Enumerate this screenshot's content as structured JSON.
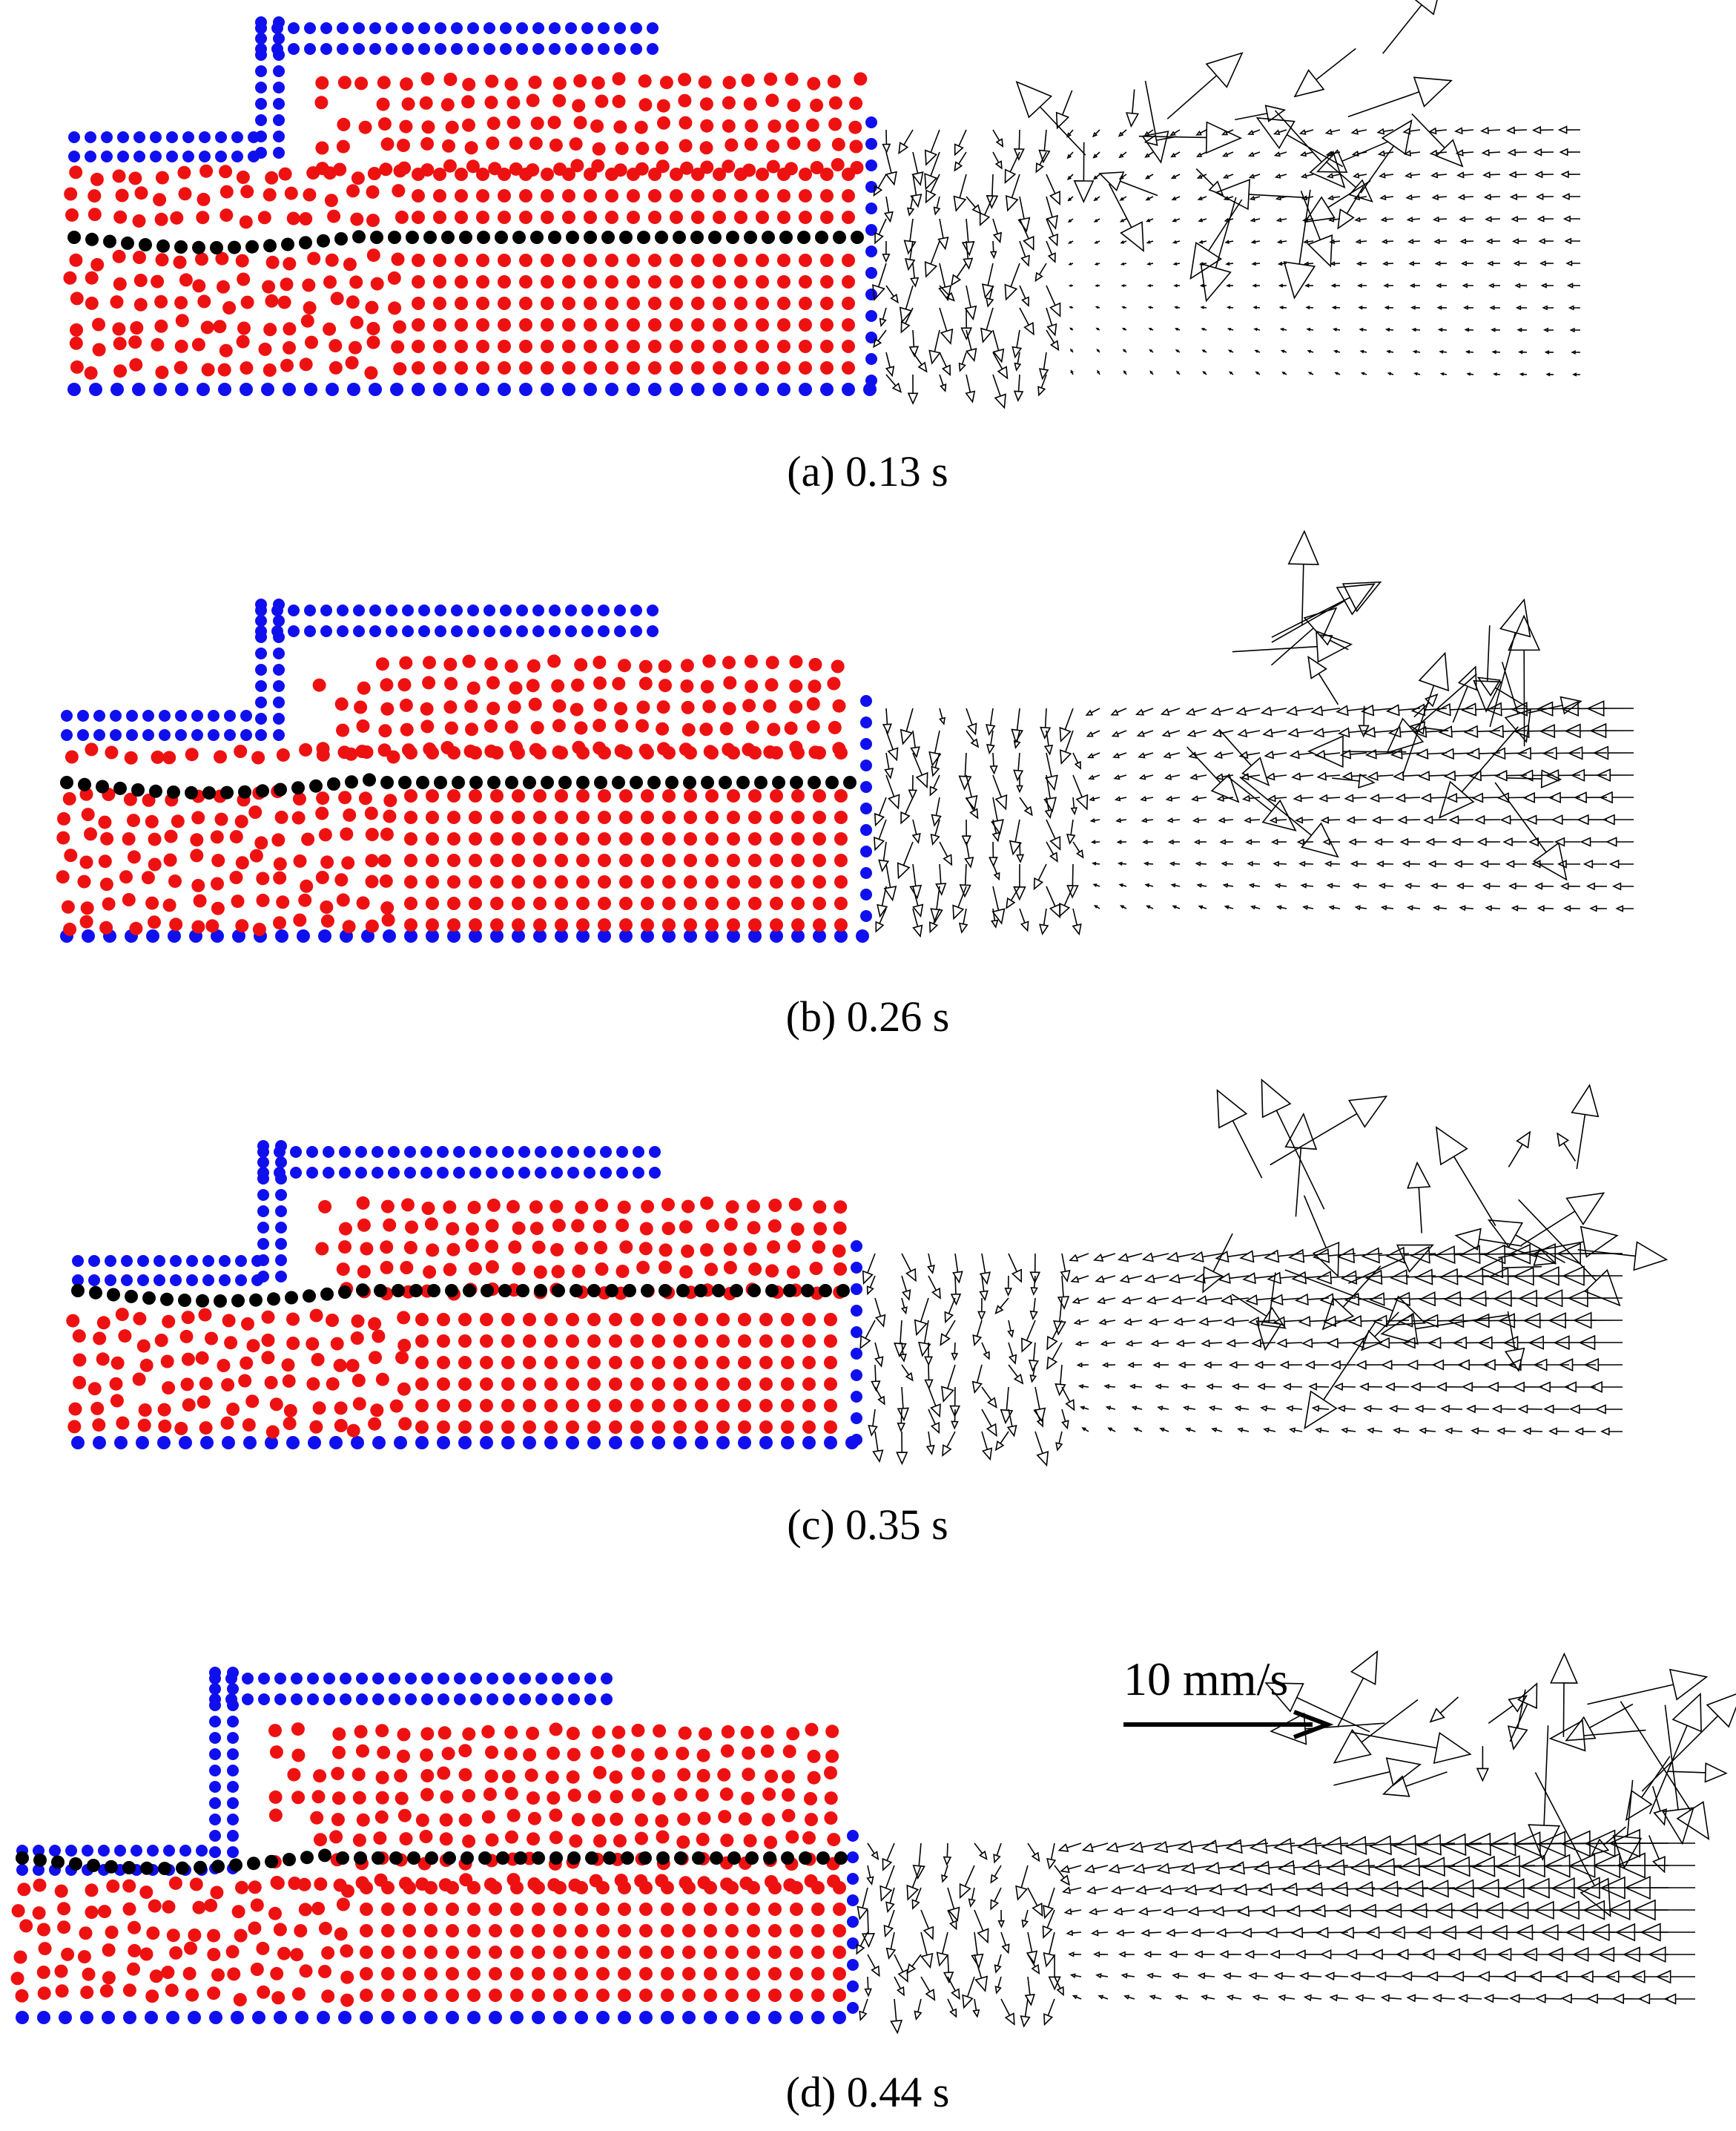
{
  "figure": {
    "panels": [
      {
        "caption": "(a) 0.13 s"
      },
      {
        "caption": "(b) 0.26 s"
      },
      {
        "caption": "(c) 0.35 s"
      },
      {
        "caption": "(d) 0.44 s"
      }
    ],
    "scale_arrow": {
      "label": "10 mm/s"
    },
    "colors": {
      "boundary_particles": "#1010ee",
      "fluid_particles": "#ee1111",
      "interface_particles": "#000000",
      "velocity_vectors": "#000000"
    }
  }
}
